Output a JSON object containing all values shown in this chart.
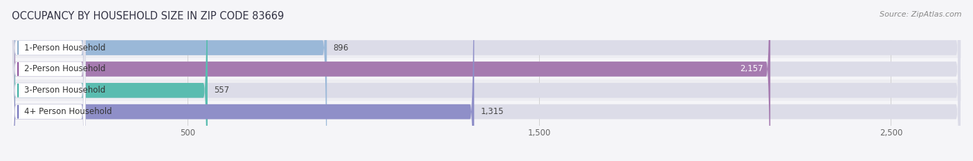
{
  "title": "OCCUPANCY BY HOUSEHOLD SIZE IN ZIP CODE 83669",
  "source": "Source: ZipAtlas.com",
  "categories": [
    "1-Person Household",
    "2-Person Household",
    "3-Person Household",
    "4+ Person Household"
  ],
  "values": [
    896,
    2157,
    557,
    1315
  ],
  "bar_colors": [
    "#9ab8d8",
    "#a67bb0",
    "#5abcb0",
    "#8f8fc8"
  ],
  "dot_colors": [
    "#8aaac8",
    "#8b4f9a",
    "#3aada0",
    "#7070ba"
  ],
  "label_colors": [
    "#444444",
    "#ffffff",
    "#444444",
    "#444444"
  ],
  "xlim_max": 2700,
  "xticks": [
    500,
    1500,
    2500
  ],
  "bg_color": "#f5f5f8",
  "row_bg_even": "#ededf2",
  "row_bg_odd": "#f5f5f8",
  "label_box_color": "#ffffff",
  "title_fontsize": 10.5,
  "source_fontsize": 8,
  "bar_label_fontsize": 8.5,
  "value_fontsize": 8.5,
  "tick_fontsize": 8.5
}
